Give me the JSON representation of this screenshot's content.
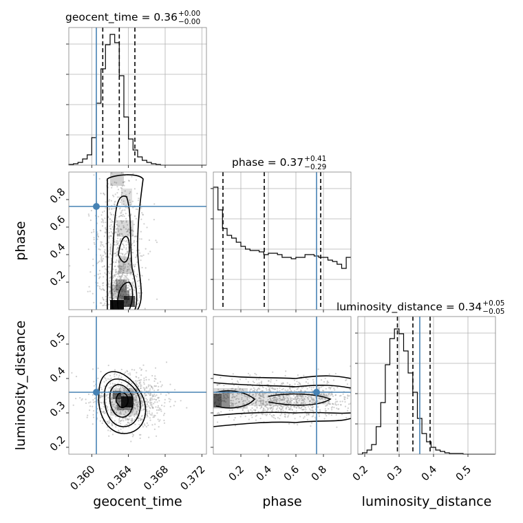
{
  "chart_data": {
    "type": "corner",
    "parameters": [
      "geocent_time",
      "phase",
      "luminosity_distance"
    ],
    "truths": {
      "geocent_time": 0.3605,
      "phase": 0.75,
      "luminosity_distance": 0.36
    },
    "colors": {
      "truth": "#4682b4",
      "hist": "#000000",
      "quantile": "#000000",
      "grid": "#b0b0b0",
      "frame": "#808080",
      "scatter": "#a8a8a8",
      "density_dark": "#000000"
    },
    "grid": true,
    "axes": {
      "geocent_time": {
        "xlim": [
          0.3575,
          0.3725
        ],
        "ticks": [
          0.36,
          0.364,
          0.368,
          0.372
        ],
        "tick_labels": [
          "0.360",
          "0.364",
          "0.368",
          "0.372"
        ],
        "label": "geocent_time"
      },
      "phase": {
        "xlim": [
          0.0,
          1.0
        ],
        "ticks": [
          0.2,
          0.4,
          0.6,
          0.8
        ],
        "tick_labels": [
          "0.2",
          "0.4",
          "0.6",
          "0.8"
        ],
        "label": "phase"
      },
      "luminosity_distance": {
        "xlim": [
          0.18,
          0.58
        ],
        "ticks": [
          0.2,
          0.3,
          0.4,
          0.5
        ],
        "tick_labels": [
          "0.2",
          "0.3",
          "0.4",
          "0.5"
        ],
        "label": "luminosity_distance"
      }
    },
    "titles": [
      {
        "param": "geocent_time",
        "text": "geocent_time = 0.36",
        "plus": "+0.00",
        "minus": "−0.00"
      },
      {
        "param": "phase",
        "text": "phase = 0.37",
        "plus": "+0.41",
        "minus": "−0.29"
      },
      {
        "param": "luminosity_distance",
        "text": "luminosity_distance = 0.34",
        "plus": "+0.05",
        "minus": "−0.05"
      }
    ],
    "marginals": [
      {
        "param": "geocent_time",
        "quantiles": [
          0.3612,
          0.363,
          0.3647
        ],
        "bin_edges_start": 0.3575,
        "bin_width": 0.0005,
        "counts": [
          1,
          2,
          4,
          9,
          15,
          40,
          90,
          140,
          175,
          190,
          178,
          130,
          70,
          38,
          22,
          12,
          7,
          4,
          2,
          1,
          0,
          0,
          0,
          0,
          0,
          0,
          0,
          0,
          0,
          0
        ],
        "ymax": 200
      },
      {
        "param": "phase",
        "quantiles": [
          0.07,
          0.37,
          0.78
        ],
        "bin_edges_start": 0.0,
        "bin_width": 0.0333,
        "counts": [
          178,
          145,
          118,
          108,
          104,
          98,
          92,
          88,
          86,
          86,
          84,
          80,
          82,
          82,
          80,
          76,
          76,
          74,
          76,
          76,
          80,
          80,
          78,
          76,
          76,
          72,
          70,
          66,
          60,
          76
        ],
        "ymax": 200
      },
      {
        "param": "luminosity_distance",
        "quantiles": [
          0.295,
          0.34,
          0.39
        ],
        "bin_edges_start": 0.18,
        "bin_width": 0.0133,
        "counts": [
          0,
          2,
          6,
          14,
          40,
          75,
          130,
          168,
          182,
          175,
          150,
          118,
          90,
          52,
          30,
          18,
          10,
          6,
          4,
          2,
          1,
          1,
          1,
          0,
          0,
          0,
          0,
          0,
          0,
          0
        ],
        "ymax": 200
      }
    ],
    "pairs": [
      {
        "x": "geocent_time",
        "y": "phase",
        "y_ticks": [
          0.2,
          0.4,
          0.6,
          0.8
        ],
        "y_tick_labels": [
          "0.2",
          "0.4",
          "0.6",
          "0.8"
        ],
        "ylim": [
          0.0,
          1.0
        ],
        "y_label": "phase"
      },
      {
        "x": "geocent_time",
        "y": "luminosity_distance",
        "y_ticks": [
          0.2,
          0.3,
          0.4,
          0.5
        ],
        "y_tick_labels": [
          "0.2",
          "0.3",
          "0.4",
          "0.5"
        ],
        "ylim": [
          0.18,
          0.58
        ],
        "y_label": "luminosity_distance"
      },
      {
        "x": "phase",
        "y": "luminosity_distance"
      }
    ]
  }
}
